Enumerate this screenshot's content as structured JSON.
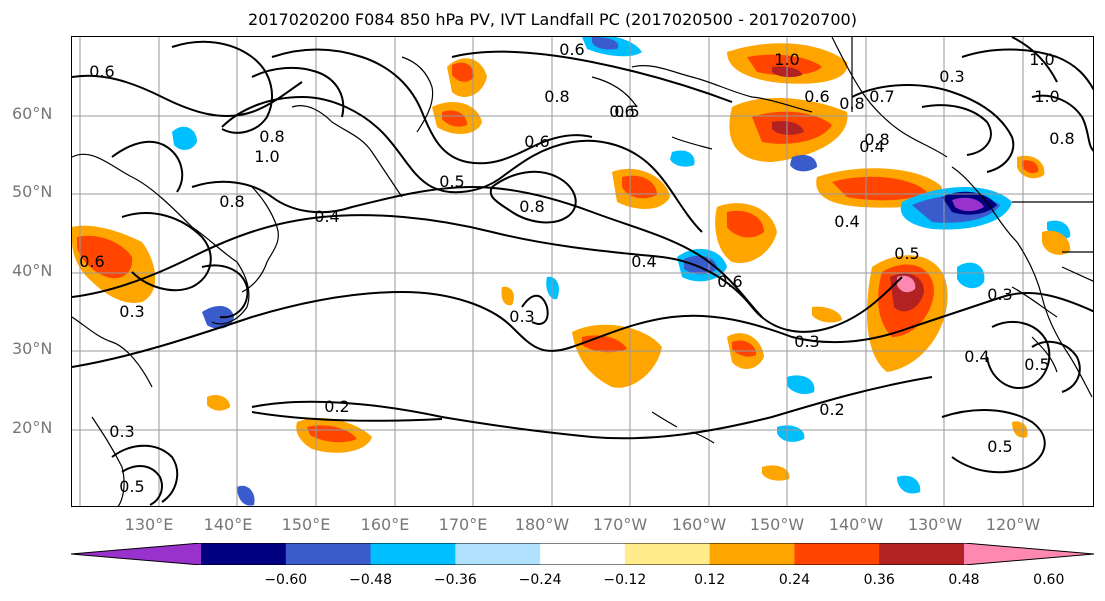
{
  "title": "2017020200 F084 850 hPa PV, IVT Landfall PC (2017020500 - 2017020700)",
  "lat_labels": [
    "60°N",
    "50°N",
    "40°N",
    "30°N",
    "20°N"
  ],
  "lon_labels": [
    "130°E",
    "140°E",
    "150°E",
    "160°E",
    "170°E",
    "180°W",
    "170°W",
    "160°W",
    "150°W",
    "140°W",
    "130°W",
    "120°W"
  ],
  "colorbar": {
    "ticks": [
      "−0.60",
      "−0.48",
      "−0.36",
      "−0.24",
      "−0.12",
      "0.12",
      "0.24",
      "0.36",
      "0.48",
      "0.60"
    ],
    "colors": [
      "#9932CC",
      "#000080",
      "#3A5BCC",
      "#00BFFF",
      "#B0E2FF",
      "#FFFFFF",
      "#FFEC8B",
      "#FFA500",
      "#FF4500",
      "#B22222",
      "#FF88B0"
    ]
  },
  "contour_labels": [
    "0.6",
    "0.6",
    "0.8",
    "0.6",
    "0.8",
    "0.5",
    "0.8",
    "0.6",
    "1.0",
    "0.8",
    "0.5",
    "1.0",
    "0.6",
    "0.8",
    "1.0",
    "0.8",
    "0.7",
    "0.4",
    "0.4",
    "0.5",
    "0.4",
    "0.6",
    "0.3",
    "0.3",
    "0.2",
    "0.2",
    "0.3",
    "0.4",
    "0.5",
    "0.5",
    "0.4",
    "0.3",
    "0.5",
    "0.6",
    "0.3",
    "0.8",
    "1.0",
    "0.3"
  ]
}
